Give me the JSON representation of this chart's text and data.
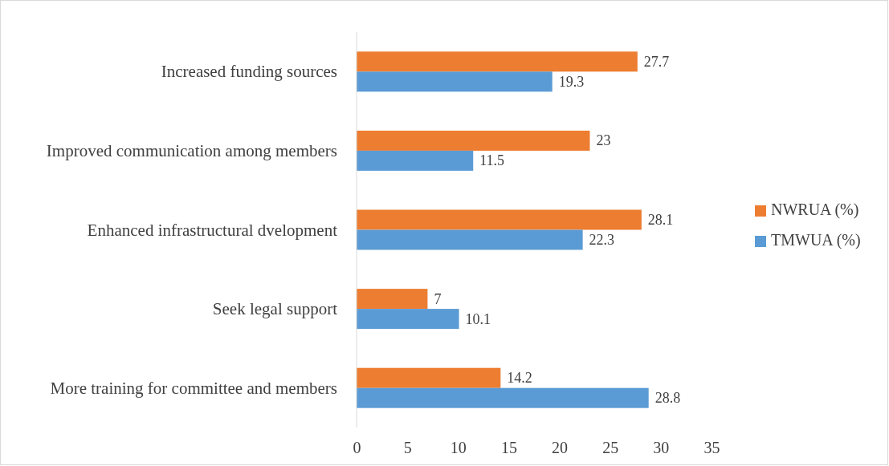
{
  "chart_data": {
    "type": "bar",
    "orientation": "horizontal",
    "categories": [
      "Increased funding sources",
      "Improved communication among members",
      "Enhanced infrastructural dvelopment",
      "Seek legal support",
      "More training for committee and members"
    ],
    "series": [
      {
        "name": "NWRUA (%)",
        "color": "#ed7d31",
        "values": [
          27.7,
          23,
          28.1,
          7,
          14.2
        ]
      },
      {
        "name": "TMWUA (%)",
        "color": "#5b9bd5",
        "values": [
          19.3,
          11.5,
          22.3,
          10.1,
          28.8
        ]
      }
    ],
    "xlim": [
      0,
      35
    ],
    "xticks": [
      0,
      5,
      10,
      15,
      20,
      25,
      30,
      35
    ],
    "grid": false,
    "legend": "right",
    "data_labels": true
  }
}
